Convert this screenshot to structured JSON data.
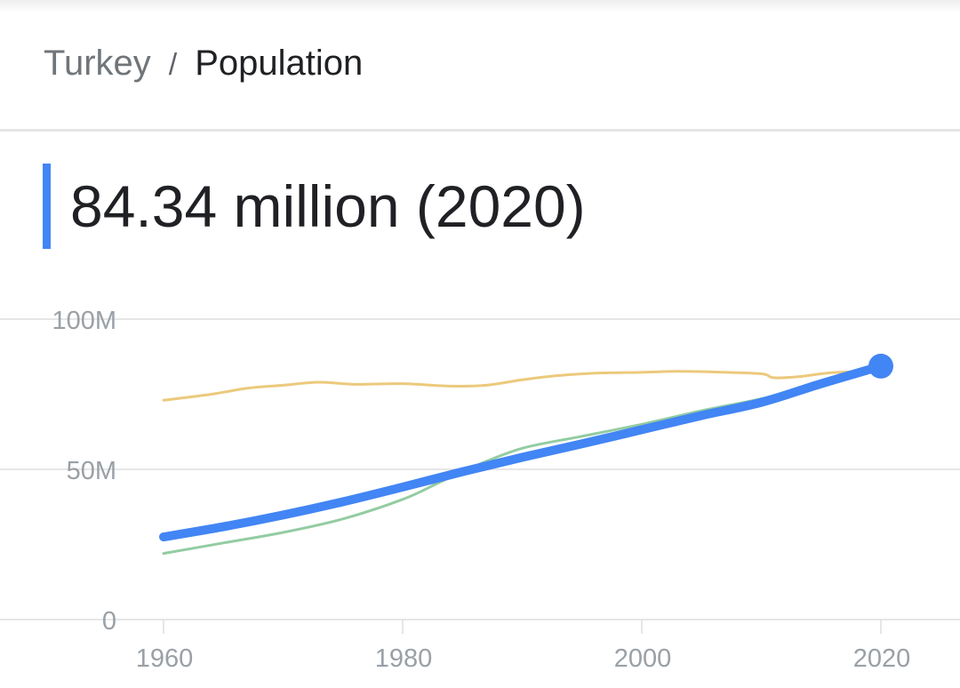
{
  "breadcrumb": {
    "parent": "Turkey",
    "separator": "/",
    "current": "Population"
  },
  "headline": {
    "value": "84.34 million (2020)"
  },
  "colors": {
    "accent": "#4285f4",
    "series_turkey": "#4285f4",
    "series_comparison_1": "#93cca2",
    "series_comparison_2": "#ecc97c",
    "grid": "#e6e6e6",
    "tick": "#9aa0a6"
  },
  "chart_data": {
    "type": "line",
    "ylim": [
      0,
      100
    ],
    "xlim": [
      1960,
      2020
    ],
    "y_ticks": [
      {
        "value": 0,
        "label": "0"
      },
      {
        "value": 50,
        "label": "50M"
      },
      {
        "value": 100,
        "label": "100M"
      }
    ],
    "x_ticks": [
      {
        "value": 1960,
        "label": "1960"
      },
      {
        "value": 1980,
        "label": "1980"
      },
      {
        "value": 2000,
        "label": "2000"
      },
      {
        "value": 2020,
        "label": "2020"
      }
    ],
    "grid": true,
    "series": [
      {
        "color": "#ecc97c",
        "x": [
          1960,
          1964,
          1967,
          1970,
          1973,
          1976,
          1980,
          1984,
          1987,
          1990,
          1993,
          1996,
          2000,
          2003,
          2006,
          2010,
          2011,
          2013,
          2016,
          2019
        ],
        "y": [
          73,
          75,
          77,
          78,
          79,
          78.3,
          78.5,
          77.7,
          78,
          79.8,
          81.2,
          82,
          82.3,
          82.6,
          82.4,
          81.8,
          80.5,
          80.8,
          82.2,
          82.5
        ]
      },
      {
        "color": "#93cca2",
        "x": [
          1960,
          1965,
          1970,
          1975,
          1980,
          1983,
          1986,
          1990,
          1995,
          2000,
          2005,
          2010,
          2015,
          2020
        ],
        "y": [
          22,
          25.5,
          29,
          33.5,
          40,
          45.5,
          51,
          57,
          61,
          65,
          69.5,
          73.5,
          78.5,
          84
        ]
      },
      {
        "color": "#4285f4",
        "emphasis": true,
        "x": [
          1960,
          1965,
          1970,
          1975,
          1980,
          1985,
          1990,
          1995,
          2000,
          2005,
          2010,
          2015,
          2020
        ],
        "y": [
          27.5,
          30.9,
          34.8,
          39.2,
          44.1,
          49.2,
          54.0,
          58.5,
          63.2,
          67.9,
          72.3,
          78.5,
          84.34
        ]
      }
    ],
    "highlight_point": {
      "x": 2020,
      "y": 84.34
    }
  }
}
